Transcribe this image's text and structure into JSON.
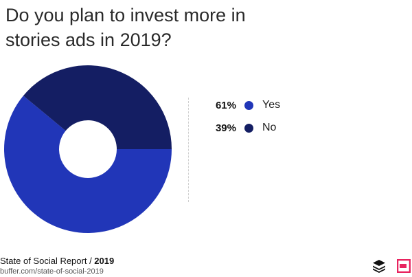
{
  "title": "Do you plan to invest more in stories ads in 2019?",
  "chart_data": {
    "type": "pie",
    "style": "donut",
    "categories": [
      "Yes",
      "No"
    ],
    "values": [
      61,
      39
    ],
    "labels": [
      "61%",
      "39%"
    ],
    "colors": [
      "#2136b8",
      "#141e63"
    ],
    "legend_placement": "right"
  },
  "footer": {
    "report_name": "State of Social Report / ",
    "report_year": "2019",
    "url": "buffer.com/state-of-social-2019"
  },
  "icons": {
    "logo_left": "buffer-layers-icon",
    "logo_right": "pink-badge-icon"
  }
}
